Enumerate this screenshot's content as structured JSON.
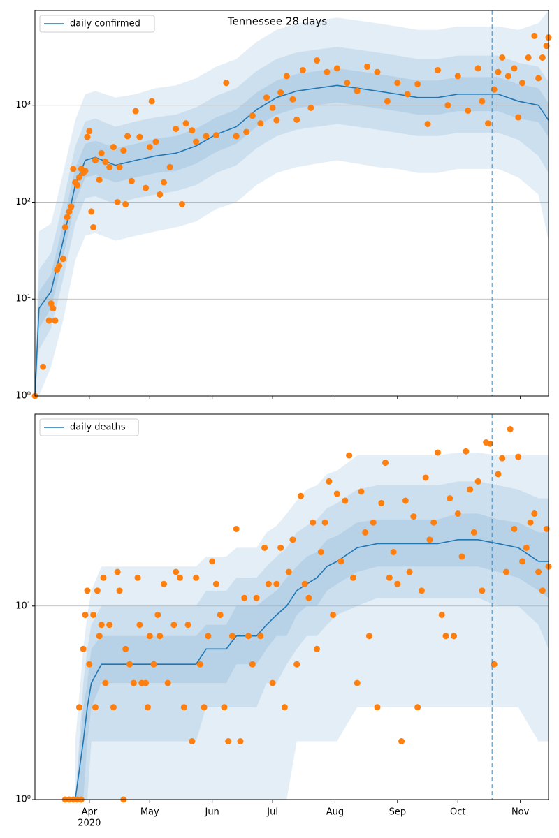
{
  "chart_data": [
    {
      "type": "line",
      "title": "Tennessee 28 days",
      "legend_label": "daily confirmed",
      "legend_loc": "upper left",
      "log_y": true,
      "grid": true,
      "color": "#1f77b4",
      "band_color": "#1f77b4",
      "xlim": [
        0,
        255
      ],
      "xticks": [
        27,
        57,
        88,
        118,
        149,
        180,
        210,
        241
      ],
      "ylim": [
        1,
        9500
      ],
      "yticks": [
        {
          "value": 1,
          "label": "10⁰"
        },
        {
          "value": 10,
          "label": "10¹"
        },
        {
          "value": 100,
          "label": "10²"
        },
        {
          "value": 1000,
          "label": "10³"
        }
      ],
      "vline": 227,
      "x": [
        0,
        2,
        8,
        14,
        20,
        25,
        30,
        40,
        50,
        60,
        70,
        80,
        90,
        100,
        110,
        120,
        130,
        140,
        150,
        160,
        170,
        180,
        190,
        200,
        210,
        220,
        230,
        240,
        250,
        255
      ],
      "values": [
        1,
        8,
        12,
        40,
        150,
        270,
        290,
        240,
        270,
        300,
        320,
        380,
        500,
        600,
        900,
        1200,
        1400,
        1500,
        1600,
        1500,
        1400,
        1300,
        1200,
        1200,
        1300,
        1300,
        1300,
        1100,
        1000,
        700
      ],
      "bands": [
        {
          "lower": [
            1,
            1,
            2,
            6,
            25,
            45,
            48,
            40,
            45,
            50,
            55,
            63,
            85,
            100,
            150,
            200,
            230,
            250,
            270,
            250,
            230,
            220,
            200,
            200,
            220,
            220,
            220,
            180,
            120,
            40
          ],
          "upper": [
            1,
            50,
            60,
            200,
            700,
            1300,
            1400,
            1200,
            1300,
            1500,
            1600,
            1900,
            2500,
            3000,
            4500,
            6000,
            7000,
            7500,
            8000,
            7500,
            7000,
            6500,
            6000,
            6000,
            6500,
            6500,
            6500,
            6000,
            7000,
            9500
          ]
        },
        {
          "lower": [
            1,
            3,
            5,
            16,
            60,
            110,
            115,
            95,
            110,
            120,
            130,
            150,
            200,
            240,
            360,
            480,
            560,
            600,
            640,
            600,
            560,
            520,
            480,
            480,
            520,
            520,
            520,
            440,
            300,
            200
          ],
          "upper": [
            1,
            20,
            30,
            100,
            375,
            680,
            730,
            600,
            680,
            750,
            800,
            950,
            1250,
            1500,
            2250,
            3000,
            3500,
            3750,
            4000,
            3750,
            3500,
            3250,
            3000,
            3000,
            3250,
            3250,
            3250,
            2750,
            2500,
            1750
          ]
        },
        {
          "lower": [
            1,
            5,
            8,
            27,
            100,
            180,
            190,
            160,
            180,
            200,
            210,
            250,
            330,
            400,
            600,
            800,
            930,
            1000,
            1070,
            1000,
            930,
            870,
            800,
            800,
            870,
            870,
            870,
            730,
            670,
            470
          ],
          "upper": [
            1,
            12,
            18,
            60,
            225,
            400,
            430,
            360,
            400,
            450,
            480,
            570,
            750,
            900,
            1350,
            1800,
            2100,
            2250,
            2400,
            2250,
            2100,
            1950,
            1800,
            1800,
            1950,
            1950,
            1950,
            1650,
            1500,
            1050
          ]
        }
      ],
      "points": {
        "color": "#ff7f0e",
        "x": [
          0,
          4,
          7,
          8,
          9,
          10,
          11,
          12,
          14,
          15,
          16,
          17,
          18,
          19,
          20,
          21,
          22,
          23,
          24,
          25,
          26,
          27,
          28,
          29,
          30,
          32,
          33,
          35,
          37,
          39,
          41,
          42,
          44,
          45,
          46,
          48,
          50,
          52,
          55,
          57,
          58,
          60,
          62,
          64,
          67,
          70,
          73,
          75,
          78,
          80,
          85,
          90,
          95,
          100,
          105,
          108,
          112,
          115,
          118,
          120,
          122,
          125,
          128,
          130,
          133,
          137,
          140,
          145,
          150,
          155,
          160,
          165,
          170,
          175,
          180,
          185,
          190,
          195,
          200,
          205,
          210,
          215,
          220,
          222,
          225,
          228,
          230,
          232,
          235,
          238,
          240,
          242,
          245,
          248,
          250,
          252,
          254,
          255
        ],
        "values": [
          1,
          2,
          6,
          9,
          8,
          6,
          20,
          22,
          26,
          55,
          70,
          80,
          90,
          220,
          160,
          150,
          180,
          220,
          200,
          210,
          470,
          540,
          80,
          55,
          270,
          170,
          320,
          260,
          230,
          370,
          100,
          230,
          340,
          95,
          480,
          165,
          870,
          470,
          140,
          370,
          1100,
          420,
          120,
          160,
          230,
          570,
          95,
          650,
          550,
          420,
          480,
          490,
          1700,
          480,
          530,
          780,
          650,
          1200,
          940,
          700,
          1350,
          2000,
          1150,
          710,
          2300,
          940,
          2900,
          2200,
          2400,
          1700,
          1400,
          2500,
          2200,
          1100,
          1700,
          1300,
          1650,
          640,
          2300,
          1000,
          2000,
          880,
          2400,
          1100,
          650,
          1450,
          2200,
          3100,
          2000,
          2400,
          750,
          1700,
          3100,
          5200,
          1900,
          3100,
          4100,
          5000
        ]
      }
    },
    {
      "type": "line",
      "legend_label": "daily deaths",
      "legend_loc": "upper left",
      "log_y": true,
      "grid": true,
      "color": "#1f77b4",
      "band_color": "#1f77b4",
      "xlim": [
        0,
        255
      ],
      "xticks": [
        {
          "value": 27,
          "label": "Apr"
        },
        {
          "value": 57,
          "label": "May"
        },
        {
          "value": 88,
          "label": "Jun"
        },
        {
          "value": 118,
          "label": "Jul"
        },
        {
          "value": 149,
          "label": "Aug"
        },
        {
          "value": 180,
          "label": "Sep"
        },
        {
          "value": 210,
          "label": "Oct"
        },
        {
          "value": 241,
          "label": "Nov"
        }
      ],
      "x_year_label": "2020",
      "ylim": [
        1,
        98
      ],
      "yticks": [
        {
          "value": 1,
          "label": "10⁰"
        },
        {
          "value": 10,
          "label": "10¹"
        }
      ],
      "vline": 227,
      "x": [
        20,
        24,
        26,
        28,
        33,
        50,
        60,
        80,
        85,
        95,
        100,
        110,
        115,
        120,
        125,
        130,
        135,
        140,
        145,
        150,
        160,
        170,
        180,
        190,
        200,
        210,
        220,
        230,
        240,
        250,
        255
      ],
      "values": [
        1,
        2,
        3,
        4,
        5,
        5,
        5,
        5,
        6,
        6,
        7,
        7,
        8,
        9,
        10,
        12,
        13,
        14,
        16,
        17,
        20,
        21,
        21,
        21,
        21,
        22,
        22,
        21,
        20,
        17,
        17
      ],
      "bands": [
        {
          "lower": [
            1,
            1,
            1,
            1,
            1,
            1,
            1,
            1,
            1,
            1,
            1,
            1,
            1,
            1,
            1,
            2,
            2,
            2,
            2,
            2,
            3,
            3,
            3,
            3,
            3,
            3,
            3,
            3,
            3,
            2,
            2
          ],
          "upper": [
            2,
            6,
            9,
            12,
            16,
            16,
            16,
            16,
            18,
            18,
            20,
            20,
            24,
            26,
            30,
            35,
            40,
            42,
            48,
            50,
            60,
            60,
            60,
            60,
            60,
            62,
            62,
            60,
            60,
            60,
            60
          ]
        },
        {
          "lower": [
            1,
            1,
            1,
            2,
            2,
            2,
            2,
            2,
            3,
            3,
            3,
            3,
            4,
            4,
            5,
            6,
            7,
            7,
            8,
            9,
            10,
            11,
            11,
            11,
            11,
            11,
            11,
            10,
            10,
            8,
            6
          ],
          "upper": [
            1,
            4,
            6,
            8,
            10,
            10,
            10,
            10,
            12,
            12,
            14,
            14,
            16,
            18,
            20,
            24,
            26,
            28,
            32,
            34,
            40,
            42,
            42,
            42,
            42,
            44,
            44,
            42,
            40,
            36,
            36
          ]
        },
        {
          "lower": [
            1,
            1,
            2,
            3,
            4,
            4,
            4,
            4,
            4,
            4,
            5,
            5,
            6,
            7,
            7,
            9,
            10,
            10,
            12,
            13,
            15,
            16,
            16,
            16,
            16,
            16,
            16,
            15,
            14,
            12,
            11
          ],
          "upper": [
            1,
            3,
            4,
            6,
            7,
            7,
            7,
            7,
            8,
            8,
            10,
            10,
            11,
            12,
            14,
            16,
            18,
            19,
            22,
            23,
            27,
            28,
            28,
            28,
            28,
            30,
            30,
            28,
            27,
            24,
            24
          ]
        }
      ],
      "points": {
        "color": "#ff7f0e",
        "x": [
          15,
          17,
          19,
          21,
          23,
          22,
          24,
          25,
          26,
          27,
          29,
          30,
          31,
          32,
          33,
          34,
          35,
          37,
          39,
          41,
          42,
          44,
          45,
          47,
          49,
          51,
          52,
          53,
          55,
          56,
          57,
          59,
          61,
          62,
          64,
          66,
          69,
          70,
          72,
          74,
          76,
          78,
          80,
          82,
          84,
          86,
          88,
          90,
          92,
          94,
          96,
          98,
          100,
          102,
          104,
          106,
          108,
          110,
          112,
          114,
          116,
          118,
          120,
          122,
          124,
          126,
          128,
          130,
          132,
          134,
          136,
          138,
          140,
          142,
          144,
          146,
          148,
          150,
          152,
          154,
          156,
          158,
          160,
          162,
          164,
          166,
          168,
          170,
          172,
          174,
          176,
          178,
          180,
          182,
          184,
          186,
          188,
          190,
          192,
          194,
          196,
          198,
          200,
          202,
          204,
          206,
          208,
          210,
          212,
          214,
          216,
          218,
          220,
          222,
          224,
          226,
          228,
          230,
          232,
          234,
          236,
          238,
          240,
          242,
          244,
          246,
          248,
          250,
          252,
          254,
          255
        ],
        "values": [
          1,
          1,
          1,
          1,
          1,
          3,
          6,
          9,
          12,
          5,
          9,
          3,
          12,
          7,
          8,
          14,
          4,
          8,
          3,
          15,
          12,
          1,
          6,
          5,
          4,
          14,
          8,
          4,
          4,
          3,
          7,
          5,
          9,
          7,
          13,
          4,
          8,
          15,
          14,
          3,
          8,
          2,
          14,
          5,
          3,
          7,
          17,
          13,
          9,
          3,
          2,
          7,
          25,
          2,
          11,
          7,
          5,
          11,
          7,
          20,
          13,
          4,
          13,
          20,
          3,
          15,
          22,
          5,
          37,
          13,
          11,
          27,
          6,
          19,
          27,
          44,
          9,
          38,
          17,
          35,
          60,
          14,
          4,
          39,
          24,
          7,
          27,
          3,
          34,
          55,
          14,
          19,
          13,
          2,
          35,
          15,
          29,
          3,
          12,
          46,
          22,
          27,
          62,
          9,
          7,
          36,
          7,
          30,
          18,
          63,
          40,
          24,
          44,
          12,
          70,
          69,
          5,
          48,
          58,
          15,
          82,
          25,
          59,
          17,
          20,
          27,
          30,
          15,
          12,
          25,
          16
        ]
      }
    }
  ]
}
